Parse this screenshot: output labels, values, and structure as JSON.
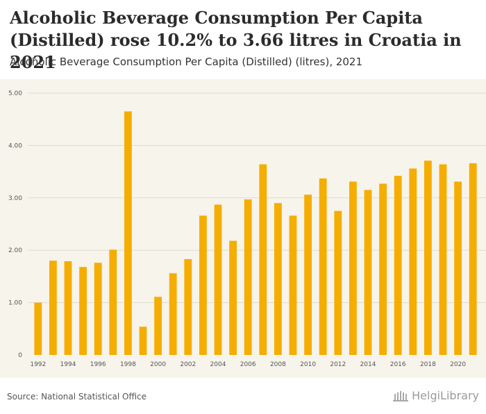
{
  "header": {
    "title": "Alcoholic Beverage Consumption Per Capita (Distilled) rose 10.2% to 3.66 litres in Croatia in 2021",
    "subtitle": "Alcoholic Beverage Consumption Per Capita (Distilled) (litres), 2021"
  },
  "footer": {
    "source": "Source: National Statistical Office",
    "logo_text": "HelgiLibrary"
  },
  "colors": {
    "bar": "#f5ad00",
    "plot_background": "#f7f4ec",
    "gridline": "#dedad0",
    "tick_text": "#555555"
  },
  "chart_data": {
    "type": "bar",
    "title": "Alcoholic Beverage Consumption Per Capita (Distilled) (litres), 2021",
    "xlabel": "",
    "ylabel": "",
    "ylim": [
      0,
      5
    ],
    "yticks": [
      "0",
      "1.00",
      "2.00",
      "3.00",
      "4.00",
      "5.00"
    ],
    "ytick_values": [
      0,
      1,
      2,
      3,
      4,
      5
    ],
    "categories": [
      1992,
      1993,
      1994,
      1995,
      1996,
      1997,
      1998,
      1999,
      2000,
      2001,
      2002,
      2003,
      2004,
      2005,
      2006,
      2007,
      2008,
      2009,
      2010,
      2011,
      2012,
      2013,
      2014,
      2015,
      2016,
      2017,
      2018,
      2019,
      2020,
      2021
    ],
    "values": [
      1.0,
      1.8,
      1.79,
      1.68,
      1.76,
      2.01,
      4.65,
      0.54,
      1.11,
      1.56,
      1.83,
      2.66,
      2.87,
      2.18,
      2.97,
      3.64,
      2.9,
      2.66,
      3.06,
      3.37,
      2.75,
      3.31,
      3.15,
      3.27,
      3.42,
      3.56,
      3.71,
      3.64,
      3.31,
      3.66
    ],
    "xtick_labels": [
      "1992",
      "1994",
      "1996",
      "1998",
      "2000",
      "2002",
      "2004",
      "2006",
      "2008",
      "2010",
      "2012",
      "2014",
      "2016",
      "2018",
      "2020"
    ],
    "grid": true,
    "legend": "none"
  }
}
